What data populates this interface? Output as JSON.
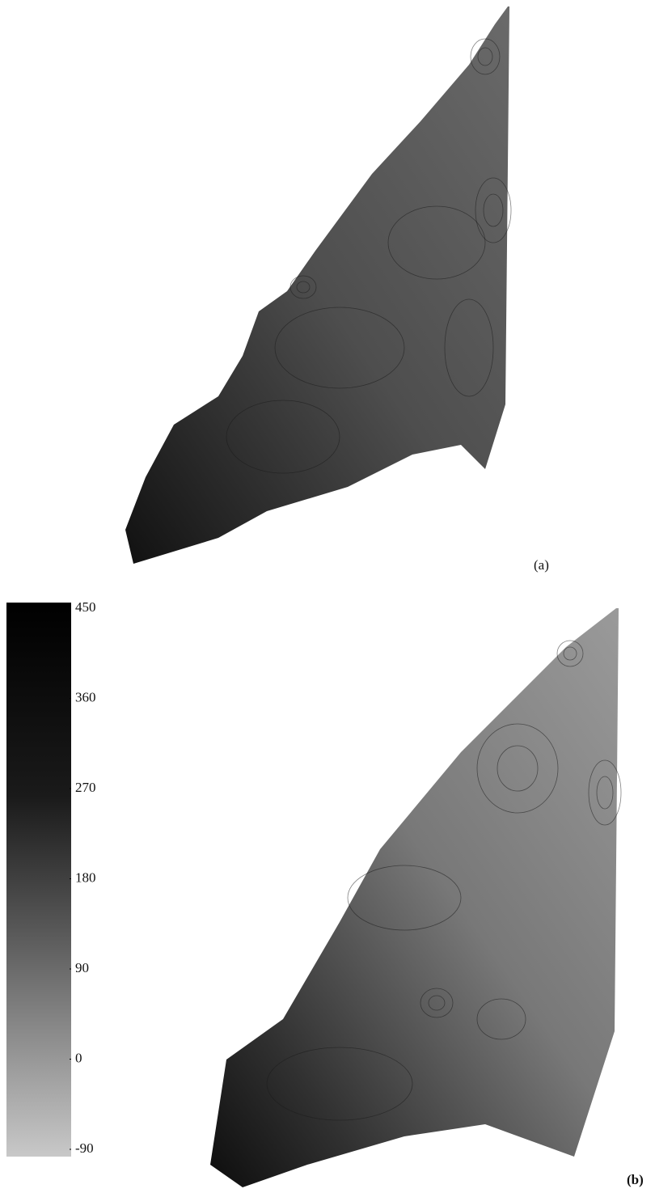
{
  "panels": [
    {
      "label": "(a)"
    },
    {
      "label": "(b)"
    }
  ],
  "colorbar": {
    "lim": [
      -90,
      450
    ],
    "ticks": [
      450,
      360,
      270,
      180,
      90,
      0,
      -90
    ]
  }
}
